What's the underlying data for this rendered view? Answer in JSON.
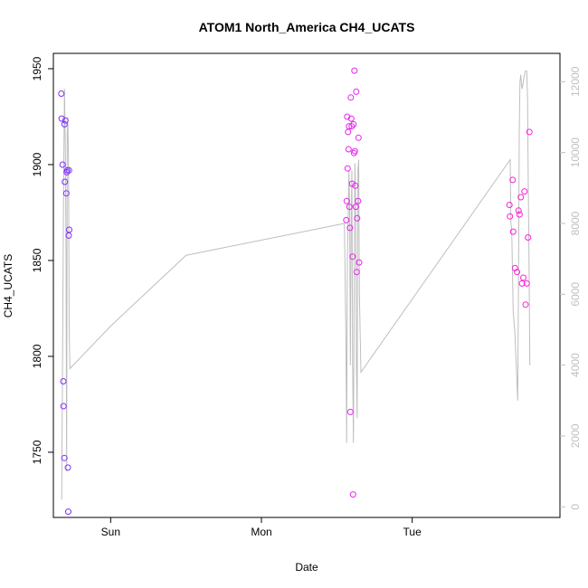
{
  "chart_data": {
    "type": "scatter",
    "title": "ATOM1 North_America CH4_UCATS",
    "xlabel": "Date",
    "ylabel": "CH4_UCATS",
    "x_ticks": [
      {
        "value": 1.0,
        "label": "Sun"
      },
      {
        "value": 2.0,
        "label": "Mon"
      },
      {
        "value": 3.0,
        "label": "Tue"
      }
    ],
    "xlim": [
      0.62,
      3.98
    ],
    "ylim": [
      1716,
      1958
    ],
    "y_ticks": [
      1750,
      1800,
      1850,
      1900,
      1950
    ],
    "y2lim": [
      -300,
      12800
    ],
    "y2_ticks": [
      0,
      2000,
      4000,
      6000,
      8000,
      10000,
      12000
    ],
    "colors": {
      "cluster1": "#7f2fff",
      "cluster2": "#e625ee",
      "cluster3": "#ff1fd8",
      "altitude": "#bebebe"
    },
    "series": [
      {
        "color": "#7f2fff",
        "points": [
          {
            "x": 0.673,
            "y": 1937
          },
          {
            "x": 0.675,
            "y": 1924
          },
          {
            "x": 0.681,
            "y": 1900
          },
          {
            "x": 0.686,
            "y": 1787
          },
          {
            "x": 0.687,
            "y": 1774
          },
          {
            "x": 0.693,
            "y": 1747
          },
          {
            "x": 0.694,
            "y": 1921
          },
          {
            "x": 0.696,
            "y": 1891
          },
          {
            "x": 0.699,
            "y": 1923
          },
          {
            "x": 0.706,
            "y": 1885
          },
          {
            "x": 0.709,
            "y": 1896
          },
          {
            "x": 0.712,
            "y": 1897
          },
          {
            "x": 0.716,
            "y": 1742
          },
          {
            "x": 0.719,
            "y": 1719
          },
          {
            "x": 0.722,
            "y": 1863
          },
          {
            "x": 0.724,
            "y": 1897
          },
          {
            "x": 0.725,
            "y": 1866
          }
        ]
      },
      {
        "color": "#e625ee",
        "points": [
          {
            "x": 2.563,
            "y": 1871
          },
          {
            "x": 2.566,
            "y": 1881
          },
          {
            "x": 2.569,
            "y": 1925
          },
          {
            "x": 2.572,
            "y": 1898
          },
          {
            "x": 2.575,
            "y": 1917
          },
          {
            "x": 2.578,
            "y": 1908
          },
          {
            "x": 2.581,
            "y": 1920
          },
          {
            "x": 2.584,
            "y": 1878
          },
          {
            "x": 2.587,
            "y": 1867
          },
          {
            "x": 2.59,
            "y": 1771
          },
          {
            "x": 2.593,
            "y": 1935
          },
          {
            "x": 2.596,
            "y": 1924
          },
          {
            "x": 2.599,
            "y": 1920
          },
          {
            "x": 2.602,
            "y": 1890
          },
          {
            "x": 2.605,
            "y": 1852
          },
          {
            "x": 2.608,
            "y": 1728
          },
          {
            "x": 2.611,
            "y": 1921
          },
          {
            "x": 2.614,
            "y": 1906
          },
          {
            "x": 2.617,
            "y": 1949
          },
          {
            "x": 2.62,
            "y": 1907
          },
          {
            "x": 2.623,
            "y": 1889
          },
          {
            "x": 2.626,
            "y": 1878
          },
          {
            "x": 2.629,
            "y": 1938
          },
          {
            "x": 2.632,
            "y": 1844
          },
          {
            "x": 2.635,
            "y": 1872
          },
          {
            "x": 2.641,
            "y": 1881
          },
          {
            "x": 2.644,
            "y": 1914
          },
          {
            "x": 2.648,
            "y": 1849
          }
        ]
      },
      {
        "color": "#ff1fd8",
        "points": [
          {
            "x": 3.645,
            "y": 1879
          },
          {
            "x": 3.648,
            "y": 1873
          },
          {
            "x": 3.666,
            "y": 1892
          },
          {
            "x": 3.67,
            "y": 1865
          },
          {
            "x": 3.682,
            "y": 1846
          },
          {
            "x": 3.695,
            "y": 1844
          },
          {
            "x": 3.705,
            "y": 1876
          },
          {
            "x": 3.712,
            "y": 1874
          },
          {
            "x": 3.72,
            "y": 1883
          },
          {
            "x": 3.728,
            "y": 1838
          },
          {
            "x": 3.737,
            "y": 1841
          },
          {
            "x": 3.745,
            "y": 1886
          },
          {
            "x": 3.752,
            "y": 1827
          },
          {
            "x": 3.76,
            "y": 1838
          },
          {
            "x": 3.768,
            "y": 1862
          },
          {
            "x": 3.777,
            "y": 1917
          }
        ]
      }
    ],
    "altitude_line": [
      [
        0.675,
        200
      ],
      [
        0.688,
        9000
      ],
      [
        0.694,
        11800
      ],
      [
        0.7,
        10000
      ],
      [
        0.704,
        7000
      ],
      [
        0.708,
        1000
      ],
      [
        0.712,
        10500
      ],
      [
        0.716,
        11000
      ],
      [
        0.721,
        9500
      ],
      [
        0.725,
        5000
      ],
      [
        0.73,
        3900
      ],
      [
        1.0,
        5100
      ],
      [
        1.5,
        7100
      ],
      [
        2.55,
        8000
      ],
      [
        2.56,
        5000
      ],
      [
        2.565,
        1800
      ],
      [
        2.57,
        7000
      ],
      [
        2.575,
        8000
      ],
      [
        2.58,
        9500
      ],
      [
        2.585,
        8500
      ],
      [
        2.59,
        4000
      ],
      [
        2.595,
        8000
      ],
      [
        2.6,
        9500
      ],
      [
        2.605,
        4000
      ],
      [
        2.61,
        1800
      ],
      [
        2.615,
        6000
      ],
      [
        2.62,
        9700
      ],
      [
        2.625,
        8500
      ],
      [
        2.63,
        4000
      ],
      [
        2.635,
        2500
      ],
      [
        2.64,
        9500
      ],
      [
        2.645,
        9800
      ],
      [
        2.65,
        6000
      ],
      [
        2.66,
        3800
      ],
      [
        3.65,
        9800
      ],
      [
        3.655,
        8000
      ],
      [
        3.66,
        7800
      ],
      [
        3.67,
        5500
      ],
      [
        3.68,
        5000
      ],
      [
        3.69,
        4000
      ],
      [
        3.7,
        3000
      ],
      [
        3.705,
        6500
      ],
      [
        3.71,
        10500
      ],
      [
        3.715,
        12000
      ],
      [
        3.72,
        12200
      ],
      [
        3.725,
        11900
      ],
      [
        3.73,
        11800
      ],
      [
        3.74,
        12100
      ],
      [
        3.75,
        12300
      ],
      [
        3.76,
        12300
      ],
      [
        3.765,
        11500
      ],
      [
        3.77,
        9000
      ],
      [
        3.775,
        7000
      ],
      [
        3.78,
        4000
      ]
    ]
  }
}
